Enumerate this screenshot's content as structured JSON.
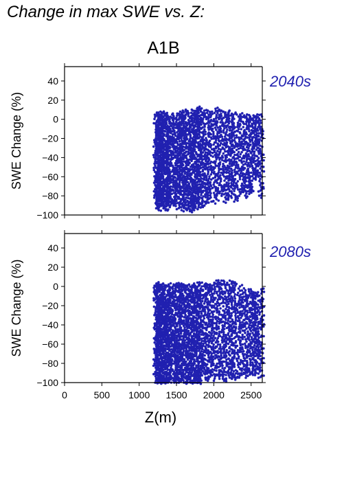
{
  "page": {
    "title": "Change in max SWE vs. Z:",
    "scenario": "A1B",
    "accent_color": "#2020b0"
  },
  "chart_data": [
    {
      "type": "scatter",
      "period_label": "2040s",
      "xlabel": "Z(m)",
      "ylabel": "SWE Change (%)",
      "xlim": [
        0,
        2650
      ],
      "ylim": [
        -100,
        55
      ],
      "xticks": [
        0,
        500,
        1000,
        1500,
        2000,
        2500
      ],
      "yticks": [
        40,
        20,
        0,
        -20,
        -40,
        -60,
        -80,
        -100
      ],
      "grid": false,
      "point_color": "#2020b0",
      "columns": [
        {
          "x": 1220,
          "ymin": -93,
          "ymax": 7
        },
        {
          "x": 1235,
          "ymin": -92,
          "ymax": 6
        },
        {
          "x": 1250,
          "ymin": -95,
          "ymax": 7
        },
        {
          "x": 1265,
          "ymin": -90,
          "ymax": 6
        },
        {
          "x": 1280,
          "ymin": -94,
          "ymax": 5
        },
        {
          "x": 1300,
          "ymin": -93,
          "ymax": 7
        },
        {
          "x": 1320,
          "ymin": -90,
          "ymax": 6
        },
        {
          "x": 1340,
          "ymin": -95,
          "ymax": 5
        },
        {
          "x": 1365,
          "ymin": -92,
          "ymax": 2
        },
        {
          "x": 1385,
          "ymin": -94,
          "ymax": 4
        },
        {
          "x": 1405,
          "ymin": -90,
          "ymax": 0
        },
        {
          "x": 1440,
          "ymin": -88,
          "ymax": 6
        },
        {
          "x": 1470,
          "ymin": -90,
          "ymax": 5
        },
        {
          "x": 1500,
          "ymin": -88,
          "ymax": 6
        },
        {
          "x": 1525,
          "ymin": -94,
          "ymax": 8
        },
        {
          "x": 1555,
          "ymin": -92,
          "ymax": 6
        },
        {
          "x": 1580,
          "ymin": -95,
          "ymax": 9
        },
        {
          "x": 1615,
          "ymin": -92,
          "ymax": 9
        },
        {
          "x": 1645,
          "ymin": -95,
          "ymax": 10
        },
        {
          "x": 1675,
          "ymin": -92,
          "ymax": 8
        },
        {
          "x": 1700,
          "ymin": -96,
          "ymax": 9
        },
        {
          "x": 1725,
          "ymin": -95,
          "ymax": 10
        },
        {
          "x": 1750,
          "ymin": -93,
          "ymax": 11
        },
        {
          "x": 1775,
          "ymin": -94,
          "ymax": 12
        },
        {
          "x": 1800,
          "ymin": -92,
          "ymax": 11
        },
        {
          "x": 1830,
          "ymin": -90,
          "ymax": 8
        },
        {
          "x": 1870,
          "ymin": -85,
          "ymax": 9
        },
        {
          "x": 1910,
          "ymin": -88,
          "ymax": 9
        },
        {
          "x": 1950,
          "ymin": -86,
          "ymax": 8
        },
        {
          "x": 2010,
          "ymin": -88,
          "ymax": 11
        },
        {
          "x": 2050,
          "ymin": -82,
          "ymax": 9
        },
        {
          "x": 2100,
          "ymin": -80,
          "ymax": 10
        },
        {
          "x": 2150,
          "ymin": -86,
          "ymax": 8
        },
        {
          "x": 2190,
          "ymin": -84,
          "ymax": 9
        },
        {
          "x": 2230,
          "ymin": -82,
          "ymax": 8
        },
        {
          "x": 2270,
          "ymin": -86,
          "ymax": 7
        },
        {
          "x": 2330,
          "ymin": -80,
          "ymax": 5
        },
        {
          "x": 2380,
          "ymin": -76,
          "ymax": 5
        },
        {
          "x": 2430,
          "ymin": -82,
          "ymax": 4
        },
        {
          "x": 2470,
          "ymin": -78,
          "ymax": 5
        },
        {
          "x": 2510,
          "ymin": -75,
          "ymax": 4
        },
        {
          "x": 2540,
          "ymin": -62,
          "ymax": 3
        },
        {
          "x": 2580,
          "ymin": -60,
          "ymax": 5
        },
        {
          "x": 2620,
          "ymin": -82,
          "ymax": 5
        }
      ]
    },
    {
      "type": "scatter",
      "period_label": "2080s",
      "xlabel": "Z(m)",
      "ylabel": "SWE Change (%)",
      "xlim": [
        0,
        2650
      ],
      "ylim": [
        -100,
        55
      ],
      "xticks": [
        0,
        500,
        1000,
        1500,
        2000,
        2500
      ],
      "yticks": [
        40,
        20,
        0,
        -20,
        -40,
        -60,
        -80,
        -100
      ],
      "grid": false,
      "point_color": "#2020b0",
      "columns": [
        {
          "x": 1220,
          "ymin": -100,
          "ymax": 3
        },
        {
          "x": 1235,
          "ymin": -100,
          "ymax": 2
        },
        {
          "x": 1250,
          "ymin": -100,
          "ymax": 3
        },
        {
          "x": 1265,
          "ymin": -99,
          "ymax": 2
        },
        {
          "x": 1280,
          "ymin": -100,
          "ymax": 1
        },
        {
          "x": 1300,
          "ymin": -100,
          "ymax": 3
        },
        {
          "x": 1320,
          "ymin": -99,
          "ymax": 2
        },
        {
          "x": 1340,
          "ymin": -100,
          "ymax": 1
        },
        {
          "x": 1365,
          "ymin": -100,
          "ymax": 0
        },
        {
          "x": 1385,
          "ymin": -100,
          "ymax": 2
        },
        {
          "x": 1405,
          "ymin": -99,
          "ymax": -2
        },
        {
          "x": 1440,
          "ymin": -100,
          "ymax": 2
        },
        {
          "x": 1470,
          "ymin": -100,
          "ymax": 1
        },
        {
          "x": 1500,
          "ymin": -100,
          "ymax": 2
        },
        {
          "x": 1525,
          "ymin": -100,
          "ymax": 3
        },
        {
          "x": 1555,
          "ymin": -100,
          "ymax": 2
        },
        {
          "x": 1580,
          "ymin": -100,
          "ymax": 3
        },
        {
          "x": 1615,
          "ymin": -100,
          "ymax": 1
        },
        {
          "x": 1645,
          "ymin": -100,
          "ymax": -4
        },
        {
          "x": 1675,
          "ymin": -100,
          "ymax": 2
        },
        {
          "x": 1700,
          "ymin": -100,
          "ymax": 1
        },
        {
          "x": 1725,
          "ymin": -100,
          "ymax": 2
        },
        {
          "x": 1750,
          "ymin": -100,
          "ymax": 3
        },
        {
          "x": 1775,
          "ymin": -100,
          "ymax": 4
        },
        {
          "x": 1800,
          "ymin": -100,
          "ymax": 3
        },
        {
          "x": 1830,
          "ymin": -98,
          "ymax": 0
        },
        {
          "x": 1870,
          "ymin": -97,
          "ymax": 2
        },
        {
          "x": 1910,
          "ymin": -98,
          "ymax": 3
        },
        {
          "x": 1950,
          "ymin": -96,
          "ymax": 2
        },
        {
          "x": 2010,
          "ymin": -98,
          "ymax": 6
        },
        {
          "x": 2050,
          "ymin": -96,
          "ymax": 4
        },
        {
          "x": 2100,
          "ymin": -96,
          "ymax": 6
        },
        {
          "x": 2150,
          "ymin": -98,
          "ymax": 5
        },
        {
          "x": 2190,
          "ymin": -97,
          "ymax": 6
        },
        {
          "x": 2230,
          "ymin": -96,
          "ymax": 5
        },
        {
          "x": 2270,
          "ymin": -97,
          "ymax": 3
        },
        {
          "x": 2330,
          "ymin": -95,
          "ymax": 0
        },
        {
          "x": 2380,
          "ymin": -92,
          "ymax": -2
        },
        {
          "x": 2430,
          "ymin": -95,
          "ymax": -4
        },
        {
          "x": 2470,
          "ymin": -93,
          "ymax": -3
        },
        {
          "x": 2510,
          "ymin": -92,
          "ymax": -5
        },
        {
          "x": 2540,
          "ymin": -90,
          "ymax": -6
        },
        {
          "x": 2580,
          "ymin": -90,
          "ymax": -6
        },
        {
          "x": 2620,
          "ymin": -95,
          "ymax": -3
        }
      ]
    }
  ]
}
